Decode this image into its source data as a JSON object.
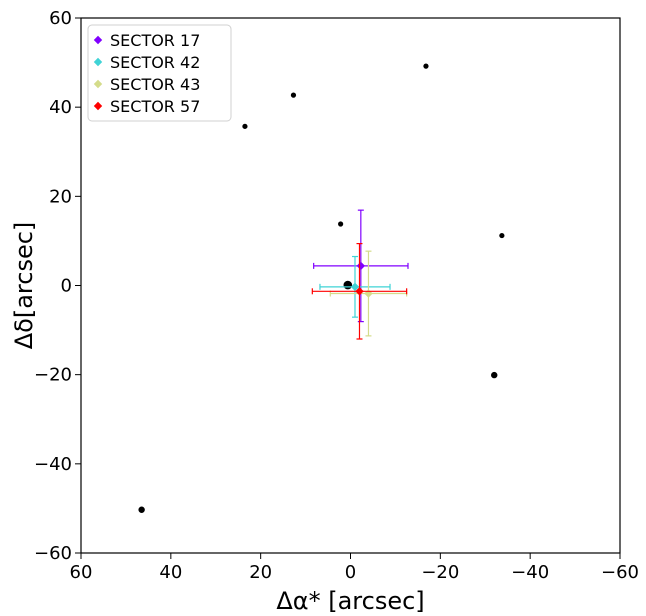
{
  "chart_data": {
    "type": "scatter",
    "title": "",
    "xlabel": "Δα* [arcsec]",
    "ylabel": "Δδ[arcsec]",
    "xlim": [
      60,
      -60
    ],
    "ylim": [
      -60,
      60
    ],
    "xticks": [
      60,
      40,
      20,
      0,
      -20,
      -40,
      -60
    ],
    "yticks": [
      60,
      40,
      20,
      0,
      -20,
      -40,
      -60
    ],
    "xtick_labels": [
      "60",
      "40",
      "20",
      "0",
      "−20",
      "−40",
      "−60"
    ],
    "ytick_labels": [
      "60",
      "40",
      "20",
      "0",
      "−20",
      "−40",
      "−60"
    ],
    "x_inverted": true,
    "grid": false,
    "legend_position": "upper-left",
    "background_points": [
      {
        "x": 46.5,
        "y": -50.3,
        "size": "medium"
      },
      {
        "x": 23.5,
        "y": 35.7,
        "size": "small"
      },
      {
        "x": 12.7,
        "y": 42.7,
        "size": "small"
      },
      {
        "x": -16.8,
        "y": 49.2,
        "size": "small"
      },
      {
        "x": 2.2,
        "y": 13.8,
        "size": "small"
      },
      {
        "x": -33.7,
        "y": 11.2,
        "size": "small"
      },
      {
        "x": -32.0,
        "y": -20.1,
        "size": "medium"
      },
      {
        "x": 0.6,
        "y": 0.1,
        "size": "large"
      }
    ],
    "series": [
      {
        "name": "SECTOR 17",
        "color": "#8000ff",
        "marker": "diamond",
        "x": -2.3,
        "y": 4.4,
        "xerr": 10.5,
        "yerr": 12.5
      },
      {
        "name": "SECTOR 42",
        "color": "#3fd3d6",
        "marker": "diamond",
        "x": -1.0,
        "y": -0.3,
        "xerr": 7.8,
        "yerr": 6.8
      },
      {
        "name": "SECTOR 43",
        "color": "#d4dc8a",
        "marker": "diamond",
        "x": -4.0,
        "y": -1.8,
        "xerr": 8.5,
        "yerr": 9.5
      },
      {
        "name": "SECTOR 57",
        "color": "#ff0000",
        "marker": "diamond",
        "x": -2.0,
        "y": -1.3,
        "xerr": 10.5,
        "yerr": 10.7
      }
    ]
  }
}
